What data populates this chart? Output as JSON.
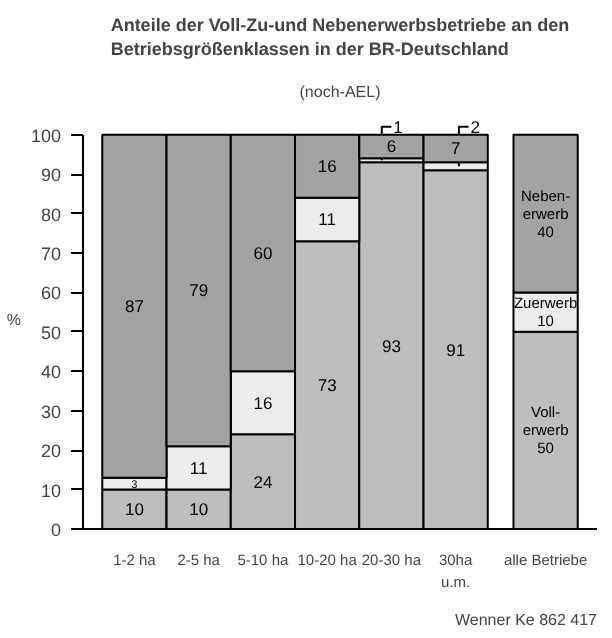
{
  "chart_data": {
    "type": "bar",
    "stacked": true,
    "title": "Anteile der Voll-Zu-und Nebenerwerbsbetriebe an den Betriebsgrößenklassen in der BR-Deutschland",
    "subtitle": "(noch-AEL)",
    "ylabel": "%",
    "categories": [
      "1-2 ha",
      "2-5 ha",
      "5-10 ha",
      "10-20 ha",
      "20-30 ha",
      "30ha u.m.",
      "alle Betriebe"
    ],
    "series": [
      {
        "name": "Voll-erwerb",
        "color": "#bdbdbd",
        "values": [
          10,
          10,
          24,
          73,
          93,
          91,
          50
        ]
      },
      {
        "name": "Zuerwerb",
        "color": "#ececec",
        "values": [
          3,
          11,
          16,
          11,
          1,
          2,
          10
        ]
      },
      {
        "name": "Neben-erwerb",
        "color": "#a3a3a3",
        "values": [
          87,
          79,
          60,
          16,
          6,
          7,
          40
        ]
      }
    ],
    "ylim": [
      0,
      100
    ],
    "yticks": [
      0,
      10,
      20,
      30,
      40,
      50,
      60,
      70,
      80,
      90,
      100
    ],
    "data_labels": true,
    "annotations": [
      "Wenner Ke 862 417"
    ]
  }
}
